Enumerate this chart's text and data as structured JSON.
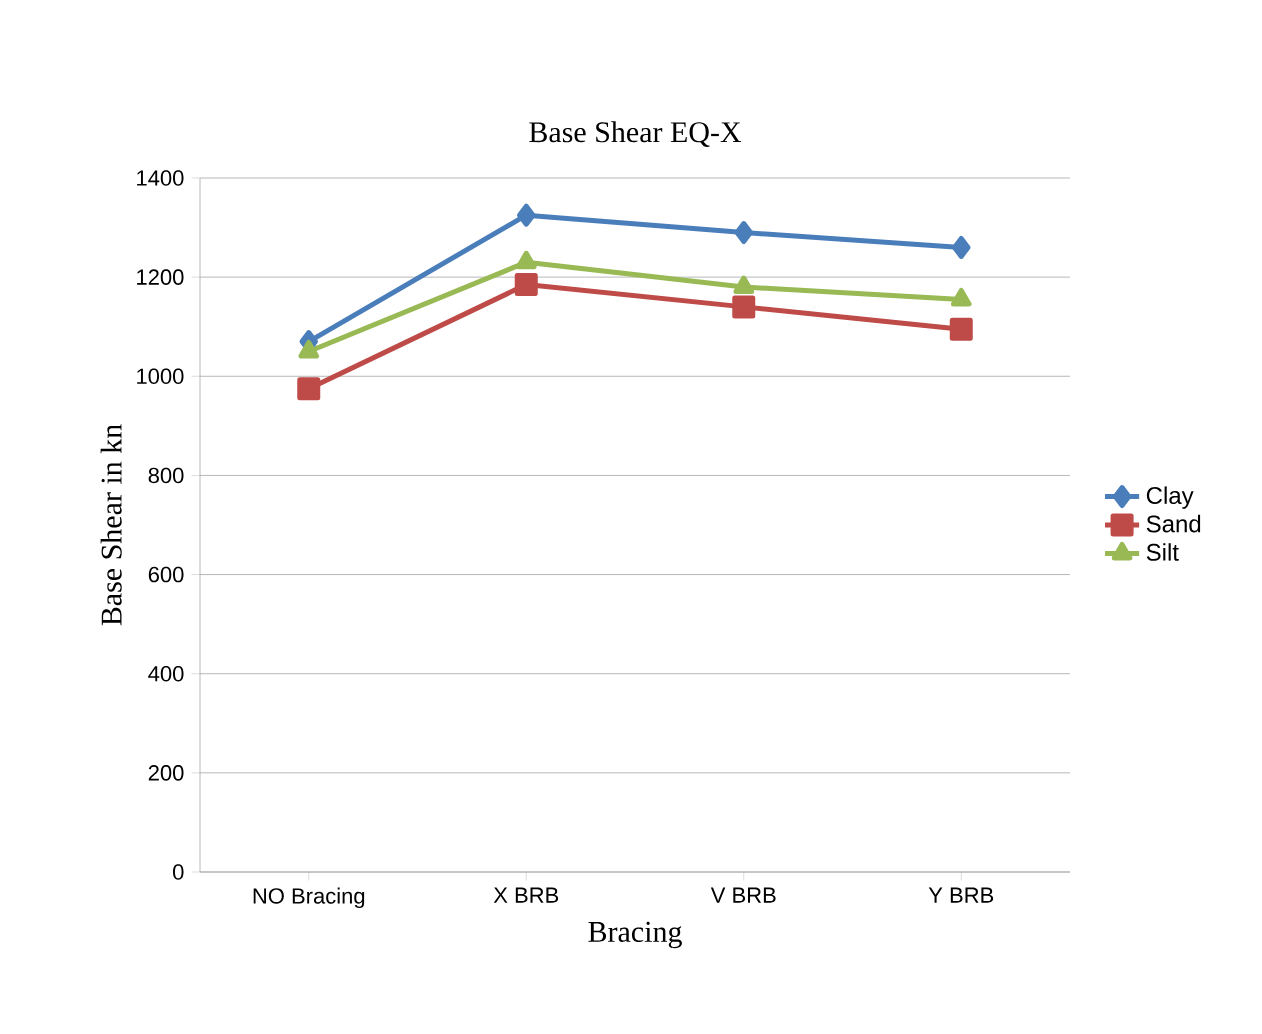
{
  "chart_data": {
    "type": "line",
    "title": "Base Shear EQ-X",
    "xlabel": "Bracing",
    "ylabel": "Base Shear in kn",
    "categories": [
      "NO Bracing",
      "X BRB",
      "V BRB",
      "Y BRB"
    ],
    "series": [
      {
        "name": "Clay",
        "color": "#4a7ebb",
        "marker": "diamond",
        "values": [
          1070,
          1325,
          1290,
          1260
        ]
      },
      {
        "name": "Sand",
        "color": "#be4b48",
        "marker": "square",
        "values": [
          975,
          1185,
          1140,
          1095
        ]
      },
      {
        "name": "Silt",
        "color": "#98b954",
        "marker": "triangle",
        "values": [
          1050,
          1230,
          1180,
          1155
        ]
      }
    ],
    "ylim": [
      0,
      1400
    ],
    "yticks": [
      0,
      200,
      400,
      600,
      800,
      1000,
      1200,
      1400
    ],
    "grid": "y",
    "legend": "right"
  }
}
